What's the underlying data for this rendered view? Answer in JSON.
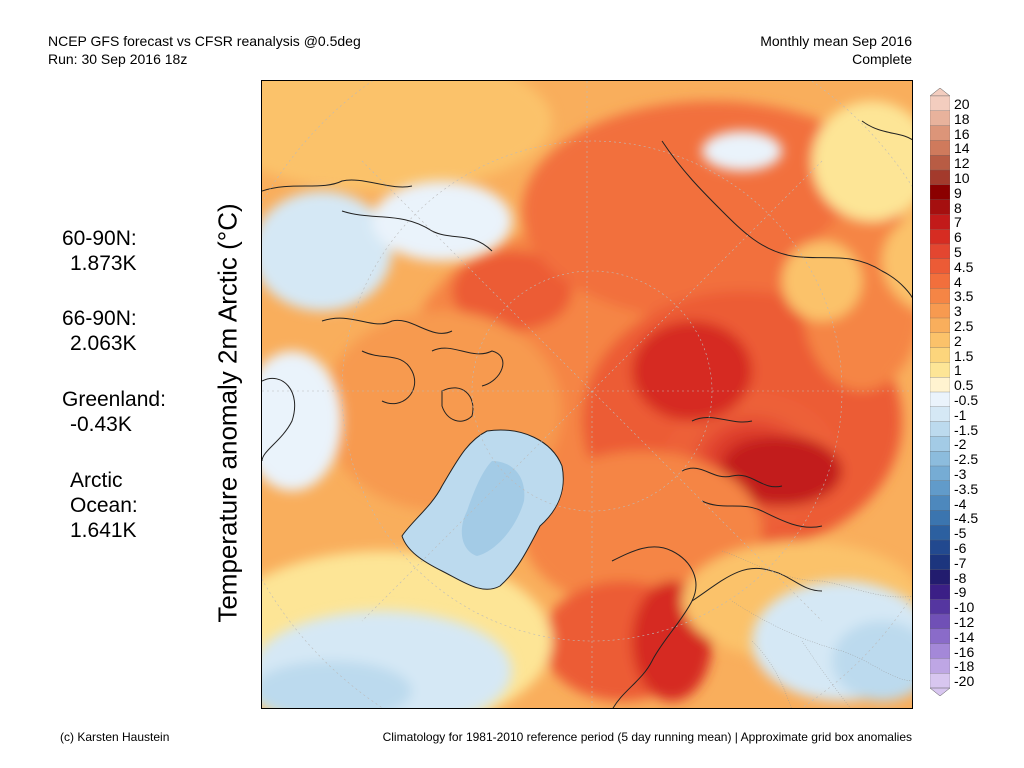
{
  "header": {
    "line1_left": "NCEP GFS forecast vs CFSR reanalysis @0.5deg",
    "line2_left": "Run: 30 Sep 2016 18z",
    "line1_right": "Monthly mean Sep 2016",
    "line2_right": "Complete"
  },
  "stats": [
    {
      "label": "60-90N:",
      "value": "1.873K"
    },
    {
      "label": "66-90N:",
      "value": "2.063K"
    },
    {
      "label": "Greenland:",
      "value": "-0.43K"
    },
    {
      "label": "Arctic",
      "label2": "Ocean:",
      "value": "1.641K"
    }
  ],
  "axis_label": "Temperature anomaly 2m Arctic (°C)",
  "colorbar": {
    "labels": [
      "20",
      "18",
      "16",
      "14",
      "12",
      "10",
      "9",
      "8",
      "7",
      "6",
      "5",
      "4.5",
      "4",
      "3.5",
      "3",
      "2.5",
      "2",
      "1.5",
      "1",
      "0.5",
      "-0.5",
      "-1",
      "-1.5",
      "-2",
      "-2.5",
      "-3",
      "-3.5",
      "-4",
      "-4.5",
      "-5",
      "-6",
      "-7",
      "-8",
      "-9",
      "-10",
      "-12",
      "-14",
      "-16",
      "-18",
      "-20"
    ],
    "colors": [
      "#f3cdbf",
      "#e8b29c",
      "#dc9579",
      "#cf7a5c",
      "#b85c44",
      "#a33a2c",
      "#8b0000",
      "#a50f0f",
      "#c21a1a",
      "#d62c22",
      "#e34630",
      "#ec5b36",
      "#f26f3c",
      "#f58545",
      "#f79a50",
      "#f9ae5c",
      "#fbc26a",
      "#fcd57c",
      "#fde596",
      "#fff3d0",
      "#eaf3fb",
      "#d5e8f5",
      "#bcdaee",
      "#a3cbe6",
      "#8cbcdd",
      "#76acd4",
      "#619bca",
      "#4d88bd",
      "#3b75af",
      "#2c60a0",
      "#22498f",
      "#1c357e",
      "#221c6e",
      "#3b1f86",
      "#5536a0",
      "#7050b6",
      "#8a6bc9",
      "#a488d8",
      "#bea6e4",
      "#d8c6f0"
    ]
  },
  "footer": {
    "left": "(c) Karsten Haustein",
    "right": "Climatology for 1981-2010 reference period (5 day running mean) | Approximate grid box anomalies"
  },
  "map_regions": [
    "arctic-ocean",
    "greenland",
    "siberia",
    "canadian-archipelago",
    "scandinavia",
    "alaska",
    "north-atlantic"
  ]
}
